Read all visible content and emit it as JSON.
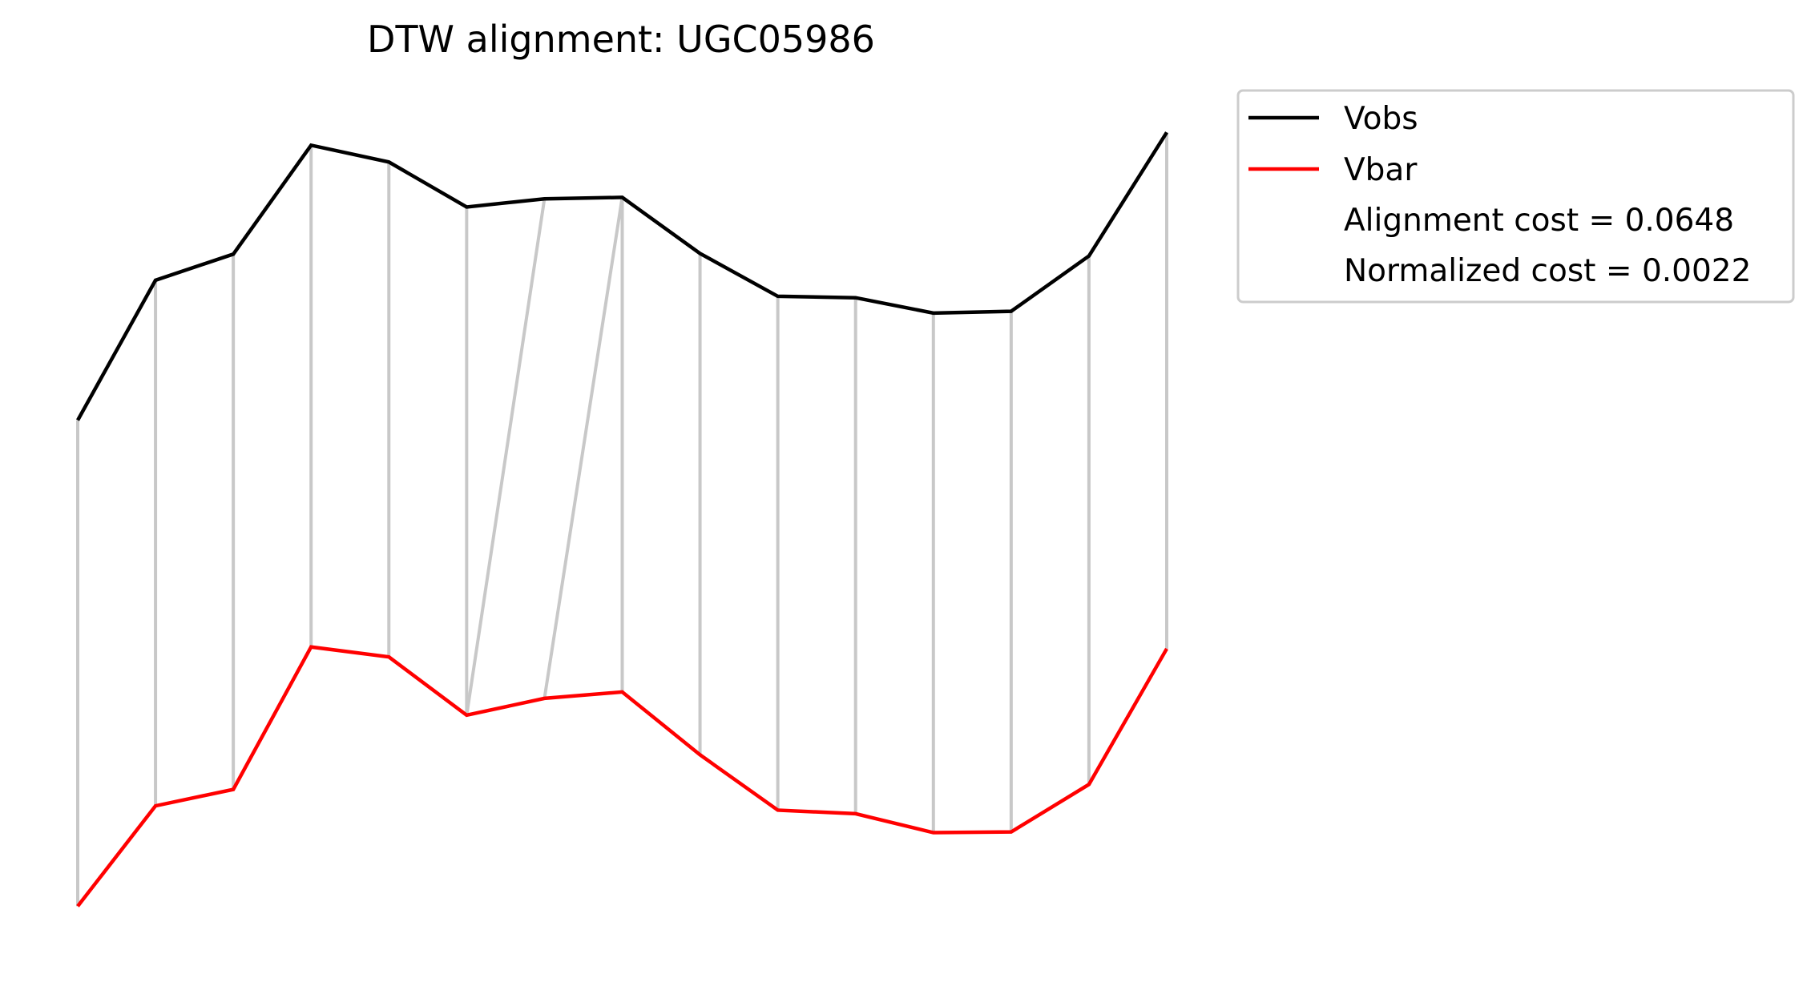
{
  "chart_data": {
    "type": "line",
    "title": "DTW alignment: UGC05986",
    "xlabel": "",
    "ylabel": "",
    "axes_visible": false,
    "grid": false,
    "legend_placement": "outside-top-right",
    "x": [
      0,
      1,
      2,
      3,
      4,
      5,
      6,
      7,
      8,
      9,
      10,
      11,
      12,
      13,
      14
    ],
    "series": [
      {
        "name": "Vobs",
        "color": "#000000",
        "values": [
          0.464,
          0.856,
          0.929,
          1.234,
          1.187,
          1.061,
          1.084,
          1.088,
          0.931,
          0.811,
          0.807,
          0.764,
          0.769,
          0.924,
          1.27
        ]
      },
      {
        "name": "Vbar",
        "color": "#ff0000",
        "values": [
          -0.897,
          -0.616,
          -0.57,
          -0.171,
          -0.199,
          -0.362,
          -0.315,
          -0.297,
          -0.473,
          -0.628,
          -0.638,
          -0.691,
          -0.689,
          -0.556,
          -0.176
        ]
      }
    ],
    "alignment_pairs": [
      [
        0,
        0
      ],
      [
        1,
        1
      ],
      [
        2,
        2
      ],
      [
        3,
        3
      ],
      [
        4,
        4
      ],
      [
        5,
        5
      ],
      [
        6,
        5
      ],
      [
        7,
        6
      ],
      [
        7,
        7
      ],
      [
        8,
        8
      ],
      [
        9,
        9
      ],
      [
        10,
        10
      ],
      [
        11,
        11
      ],
      [
        12,
        12
      ],
      [
        13,
        13
      ],
      [
        14,
        14
      ]
    ],
    "alignment_line_color": "#c8c8c8",
    "legend_entries": [
      "Vobs",
      "Vbar"
    ],
    "legend_annotations": [
      "Alignment cost = 0.0648",
      "Normalized cost = 0.0022"
    ],
    "ylim": [
      -0.95,
      1.32
    ]
  }
}
